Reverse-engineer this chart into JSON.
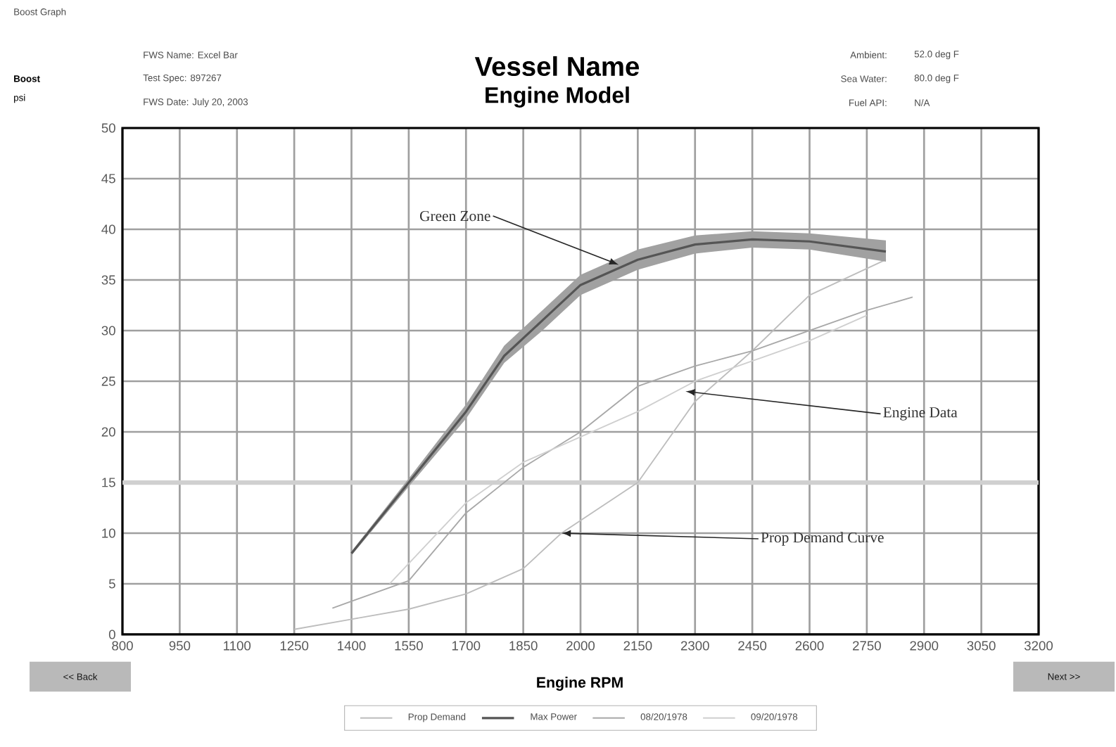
{
  "chart_data": {
    "type": "line",
    "title": "Vessel Name",
    "subtitle": "Engine Model",
    "xlabel": "Engine RPM",
    "xlim": [
      800,
      3200
    ],
    "ylim": [
      0,
      50
    ],
    "xticks": [
      800,
      950,
      1100,
      1250,
      1400,
      1550,
      1700,
      1850,
      2000,
      2150,
      2300,
      2450,
      2600,
      2750,
      2900,
      3050,
      3200
    ],
    "yticks": [
      0,
      5,
      10,
      15,
      20,
      25,
      30,
      35,
      40,
      45,
      50
    ],
    "grid": true,
    "legend": "bottom",
    "marker": "none",
    "line_style": "solid",
    "series": [
      {
        "name": "Prop Demand",
        "color": "#bdbdbd",
        "x": [
          1250,
          1400,
          1550,
          1700,
          1850,
          1950,
          2150,
          2300,
          2450,
          2600,
          2800
        ],
        "values": [
          0.5,
          1.5,
          2.5,
          4,
          6.5,
          10,
          15,
          23,
          28,
          33.5,
          37
        ]
      },
      {
        "name": "Max Power",
        "color": "#555555",
        "x": [
          1400,
          1550,
          1700,
          1800,
          1900,
          2000,
          2150,
          2300,
          2450,
          2600,
          2800
        ],
        "values": [
          8,
          15,
          22,
          27.5,
          31,
          34.5,
          37,
          38.5,
          39,
          38.8,
          37.8
        ],
        "lower": [
          7.8,
          14.6,
          21.3,
          26.8,
          30,
          33.5,
          36,
          37.6,
          38.2,
          38,
          36.8
        ],
        "upper": [
          8.2,
          15.4,
          22.7,
          28.5,
          32,
          35.5,
          38,
          39.4,
          39.8,
          39.6,
          38.9
        ]
      },
      {
        "name": "08/20/1978",
        "color": "#a8a8a8",
        "x": [
          1350,
          1550,
          1700,
          1850,
          2000,
          2150,
          2300,
          2450,
          2600,
          2750,
          2870
        ],
        "values": [
          2.6,
          5.3,
          12,
          16.5,
          20,
          24.5,
          26.5,
          28,
          30,
          32,
          33.3
        ]
      },
      {
        "name": "09/20/1978",
        "color": "#cfcfcf",
        "x": [
          1500,
          1700,
          1850,
          2000,
          2150,
          2300,
          2450,
          2600,
          2750
        ],
        "values": [
          5,
          13,
          17,
          19.5,
          22,
          25,
          27,
          29,
          31.5
        ]
      }
    ],
    "ref_lines": [
      {
        "axis": "y",
        "value": 15,
        "color": "#d0d0d0"
      }
    ],
    "annotations": [
      "Boost Graph",
      "FWS Name: Excel Bar",
      "Test Spec: 897267",
      "FWS Date: July 20, 2003",
      "Ambient:",
      "52.0 deg F",
      "Sea Water:",
      "80.0 deg F",
      "Fuel API:",
      "N/A",
      "Boost",
      "psi",
      "<< Back",
      "Next >>",
      {
        "text": "Green Zone",
        "x": 2100,
        "y": 36.5
      },
      {
        "text": "Engine Data",
        "x": 2275,
        "y": 24
      },
      {
        "text": "Prop Demand Curve",
        "x": 1950,
        "y": 10
      }
    ]
  }
}
